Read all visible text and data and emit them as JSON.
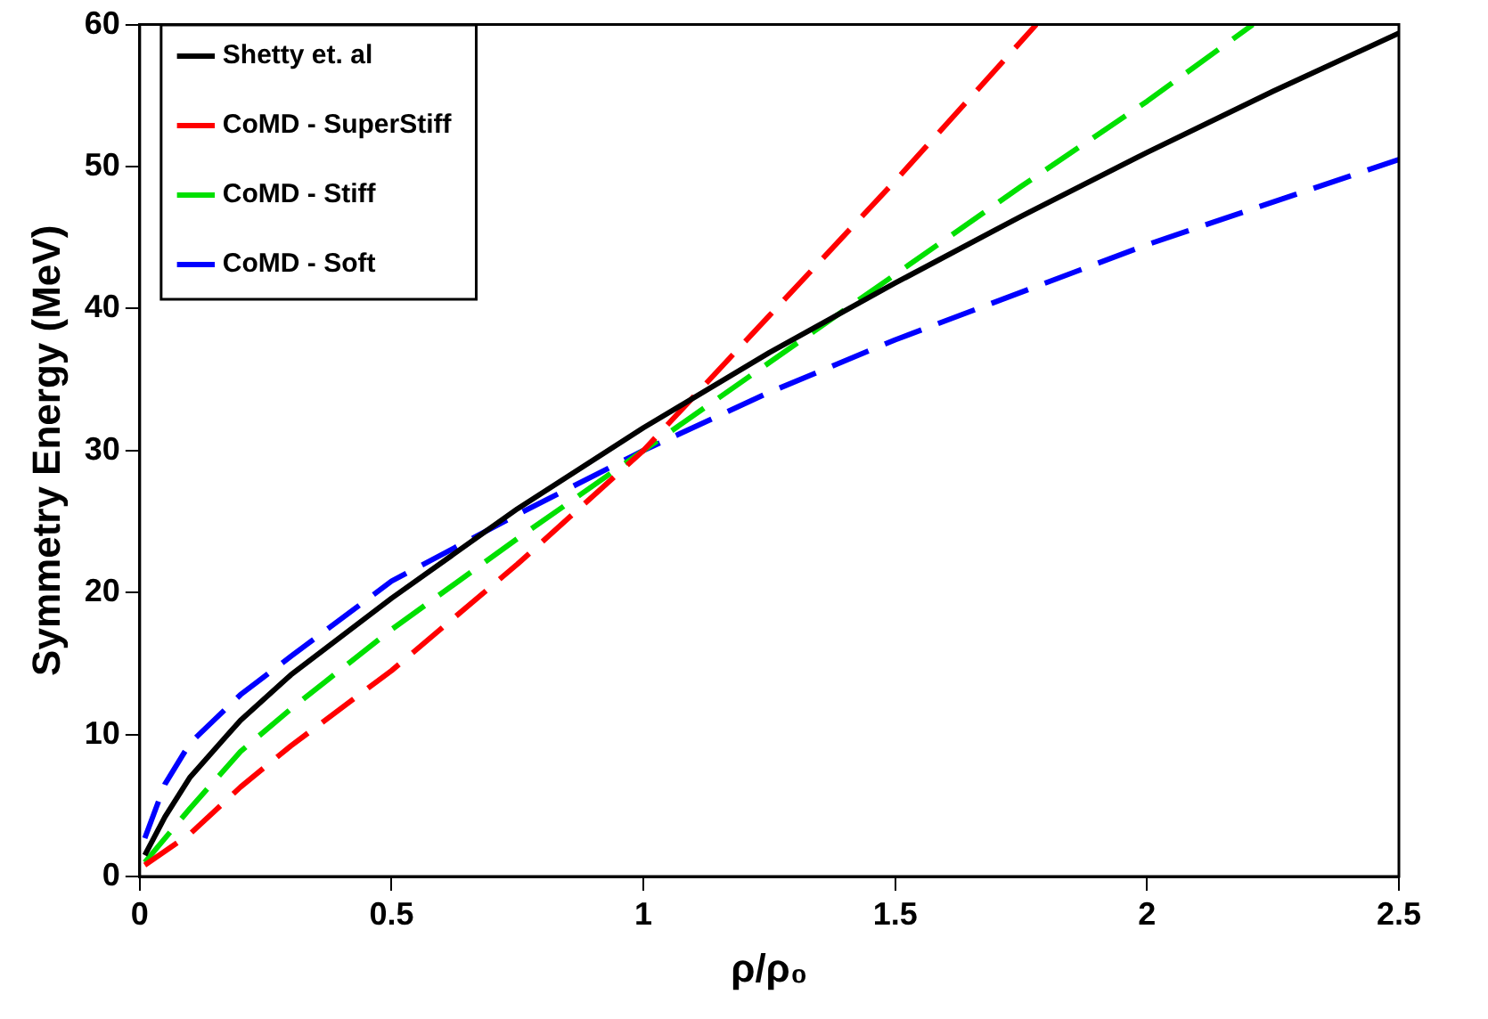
{
  "chart_data": {
    "type": "line",
    "xlabel": "ρ/ρ₀",
    "ylabel": "Symmetry Energy (MeV)",
    "xlim": [
      0,
      2.5
    ],
    "xticks": [
      0,
      0.5,
      1,
      1.5,
      2,
      2.5
    ],
    "ylim": [
      0,
      60
    ],
    "yticks": [
      0,
      10,
      20,
      30,
      40,
      50,
      60
    ],
    "grid": false,
    "legend": "top left",
    "marker": "none",
    "series": [
      {
        "name": "Shetty et. al",
        "color": "#000000",
        "line_style": "solid",
        "x": [
          0.01,
          0.05,
          0.1,
          0.2,
          0.3,
          0.5,
          0.75,
          1,
          1.25,
          1.5,
          1.75,
          2,
          2.25,
          2.5
        ],
        "values": [
          1.5,
          4.2,
          7.0,
          11.0,
          14.2,
          19.6,
          25.9,
          31.6,
          36.9,
          41.8,
          46.5,
          51.0,
          55.3,
          59.4
        ]
      },
      {
        "name": "CoMD - SuperStiff",
        "color": "#ff0000",
        "line_style": "dashed",
        "x": [
          0.01,
          0.1,
          0.2,
          0.3,
          0.5,
          0.75,
          1,
          1.25,
          1.5,
          1.78
        ],
        "values": [
          0.8,
          3.0,
          6.3,
          9.2,
          14.5,
          22,
          30,
          39.5,
          49,
          60
        ]
      },
      {
        "name": "CoMD - Stiff",
        "color": "#00e000",
        "line_style": "dashed",
        "x": [
          0.01,
          0.1,
          0.2,
          0.3,
          0.5,
          0.75,
          1,
          1.25,
          1.5,
          1.75,
          2,
          2.21
        ],
        "values": [
          1.0,
          4.8,
          8.8,
          11.8,
          17.4,
          23.8,
          30,
          36.2,
          42.4,
          48.6,
          54.6,
          60
        ]
      },
      {
        "name": "CoMD - Soft",
        "color": "#0000ff",
        "line_style": "dashed",
        "x": [
          0.01,
          0.05,
          0.1,
          0.2,
          0.3,
          0.5,
          0.75,
          1,
          1.25,
          1.5,
          2,
          2.5
        ],
        "values": [
          2.7,
          6.5,
          9.4,
          12.8,
          15.5,
          20.8,
          25.5,
          30,
          34.1,
          37.8,
          44.5,
          50.5
        ]
      }
    ]
  }
}
